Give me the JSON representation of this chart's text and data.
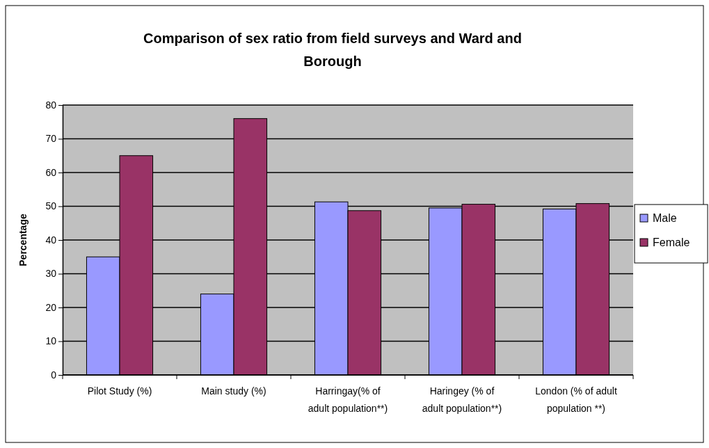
{
  "chart_data": {
    "type": "bar",
    "title": "Comparison of sex ratio from field surveys and Ward and Borough",
    "ylabel": "Percentage",
    "categories": [
      "Pilot Study (%)",
      "Main study  (%)",
      "Harringay(% of adult population**)",
      "Haringey (% of adult population**)",
      "London (% of adult population **)"
    ],
    "series": [
      {
        "name": "Male",
        "color": "#9999ff",
        "values": [
          35,
          24,
          51.3,
          49.5,
          49.2
        ]
      },
      {
        "name": "Female",
        "color": "#993366",
        "values": [
          65,
          76,
          48.7,
          50.6,
          50.8
        ]
      }
    ],
    "ylim": [
      0,
      80
    ],
    "yticks": [
      0,
      10,
      20,
      30,
      40,
      50,
      60,
      70,
      80
    ],
    "grid": "y",
    "legend": "right"
  }
}
